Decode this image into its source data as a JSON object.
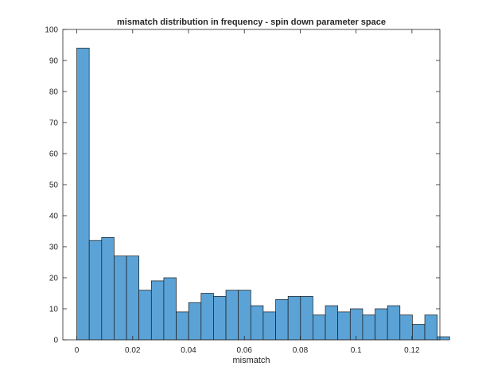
{
  "chart_data": {
    "type": "bar",
    "title": "mismatch distribution in frequency - spin down parameter space",
    "xlabel": "mismatch",
    "ylabel": "",
    "xlim": [
      -0.005,
      0.13
    ],
    "ylim": [
      0,
      100
    ],
    "bin_width": 0.00445,
    "bin_start": 0,
    "values": [
      94,
      32,
      33,
      27,
      27,
      16,
      19,
      20,
      9,
      12,
      15,
      14,
      16,
      16,
      11,
      9,
      13,
      14,
      14,
      8,
      11,
      9,
      10,
      8,
      10,
      11,
      8,
      5,
      8,
      1
    ],
    "x_ticks": [
      0,
      0.02,
      0.04,
      0.06,
      0.08,
      0.1,
      0.12
    ],
    "x_tick_labels": [
      "0",
      "0.02",
      "0.04",
      "0.06",
      "0.08",
      "0.1",
      "0.12"
    ],
    "y_ticks": [
      0,
      10,
      20,
      30,
      40,
      50,
      60,
      70,
      80,
      90,
      100
    ],
    "y_tick_labels": [
      "0",
      "10",
      "20",
      "30",
      "40",
      "50",
      "60",
      "70",
      "80",
      "90",
      "100"
    ],
    "grid": false,
    "legend": "none",
    "bar_color": "#5ba3d6",
    "bar_edge_color": "#1a1a1a",
    "axis_color": "#262626"
  }
}
